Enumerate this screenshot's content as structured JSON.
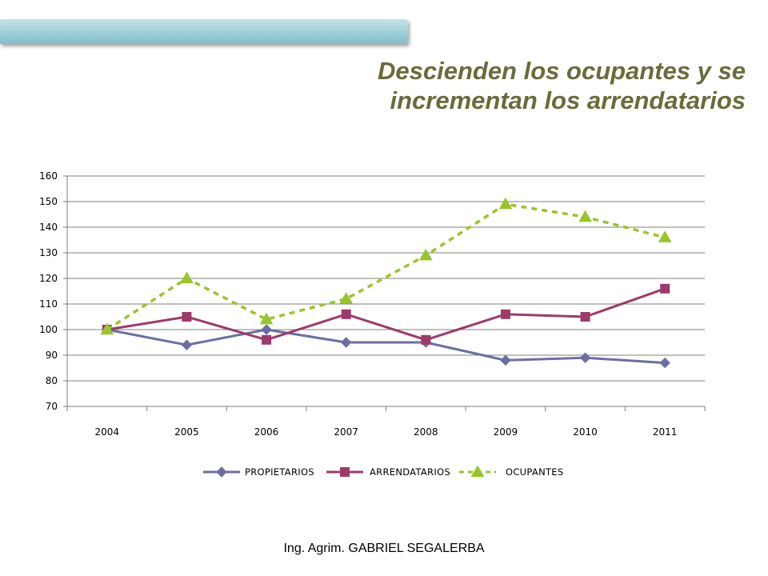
{
  "header": {
    "title_line1": "Descienden los ocupantes y se",
    "title_line2": "incrementan los arrendatarios"
  },
  "footer": {
    "author": "Ing. Agrim. GABRIEL SEGALERBA"
  },
  "colors": {
    "propietarios": "#6a6fa3",
    "arrendatarios": "#9e3a6a",
    "ocupantes": "#99c52b",
    "title": "#6b6a3a",
    "grid": "#7f7f7f"
  },
  "chart_data": {
    "type": "line",
    "title": "",
    "xlabel": "",
    "ylabel": "",
    "categories": [
      "2004",
      "2005",
      "2006",
      "2007",
      "2008",
      "2009",
      "2010",
      "2011"
    ],
    "ylim": [
      70,
      160
    ],
    "yticks": [
      70,
      80,
      90,
      100,
      110,
      120,
      130,
      140,
      150,
      160
    ],
    "grid": true,
    "legend_position": "bottom",
    "series": [
      {
        "name": "PROPIETARIOS",
        "marker": "diamond",
        "line": "solid",
        "values": [
          100,
          94,
          100,
          95,
          95,
          88,
          89,
          87
        ]
      },
      {
        "name": "ARRENDATARIOS",
        "marker": "square",
        "line": "solid",
        "values": [
          100,
          105,
          96,
          106,
          96,
          106,
          105,
          116
        ]
      },
      {
        "name": "OCUPANTES",
        "marker": "triangle",
        "line": "dashed",
        "values": [
          100,
          120,
          104,
          112,
          129,
          149,
          144,
          136
        ]
      }
    ]
  }
}
